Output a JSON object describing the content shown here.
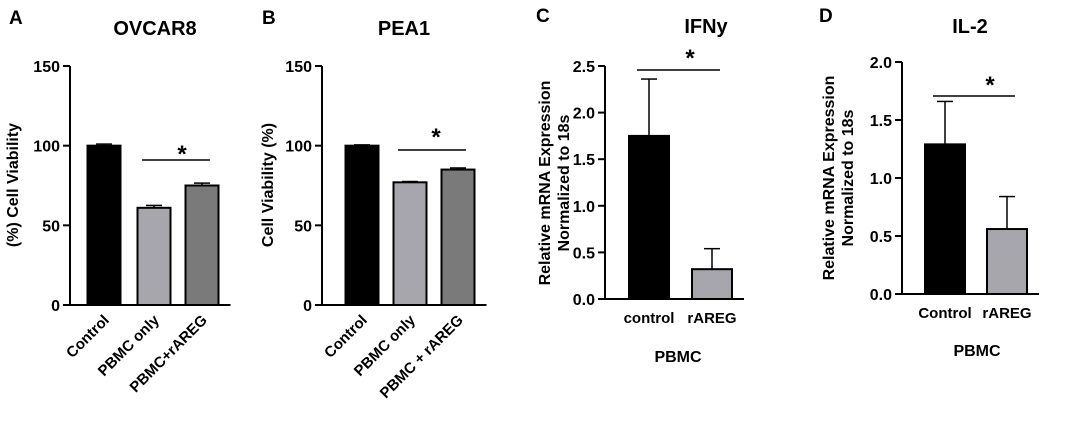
{
  "chart_data": [
    {
      "type": "bar",
      "panel_label": "A",
      "title": "OVCAR8",
      "xlabel": "",
      "ylabel": "(%) Cell Viability",
      "ylim": [
        0,
        150
      ],
      "yticks": [
        "0",
        "50",
        "100",
        "150"
      ],
      "grid": false,
      "categories": [
        "Control",
        "PBMC only",
        "PBMC+rAREG"
      ],
      "values": [
        100,
        61,
        75
      ],
      "errors": [
        1,
        1.5,
        1.5
      ],
      "colors": [
        "#000000",
        "#a6a6ac",
        "#7a7a7a"
      ],
      "significance": "*",
      "significance_between": [
        1,
        2
      ]
    },
    {
      "type": "bar",
      "panel_label": "B",
      "title": "PEA1",
      "xlabel": "",
      "ylabel": "Cell Viability (%)",
      "ylim": [
        0,
        150
      ],
      "yticks": [
        "0",
        "50",
        "100",
        "150"
      ],
      "grid": false,
      "categories": [
        "Control",
        "PBMC only",
        "PBMC + rAREG"
      ],
      "values": [
        100,
        77,
        85
      ],
      "errors": [
        0.5,
        0.5,
        1
      ],
      "colors": [
        "#000000",
        "#a6a6ac",
        "#7a7a7a"
      ],
      "significance": "*",
      "significance_between": [
        1,
        2
      ]
    },
    {
      "type": "bar",
      "panel_label": "C",
      "title": "IFNy",
      "xlabel": "PBMC",
      "ylabel": "Relative mRNA Expression\nNormalized to 18s",
      "ylim": [
        0,
        2.5
      ],
      "yticks": [
        "0.0",
        "0.5",
        "1.0",
        "1.5",
        "2.0",
        "2.5"
      ],
      "grid": false,
      "categories": [
        "control",
        "rAREG"
      ],
      "values": [
        1.75,
        0.32
      ],
      "errors": [
        0.61,
        0.22
      ],
      "colors": [
        "#000000",
        "#a6a6ac"
      ],
      "significance": "*",
      "significance_between": [
        0,
        1
      ]
    },
    {
      "type": "bar",
      "panel_label": "D",
      "title": "IL-2",
      "xlabel": "PBMC",
      "ylabel": "Relative mRNA Expression\nNormalized to 18s",
      "ylim": [
        0,
        2.0
      ],
      "yticks": [
        "0.0",
        "0.5",
        "1.0",
        "1.5",
        "2.0"
      ],
      "grid": false,
      "categories": [
        "Control",
        "rAREG"
      ],
      "values": [
        1.29,
        0.56
      ],
      "errors": [
        0.37,
        0.28
      ],
      "colors": [
        "#000000",
        "#a6a6ac"
      ],
      "significance": "*",
      "significance_between": [
        0,
        1
      ]
    }
  ]
}
